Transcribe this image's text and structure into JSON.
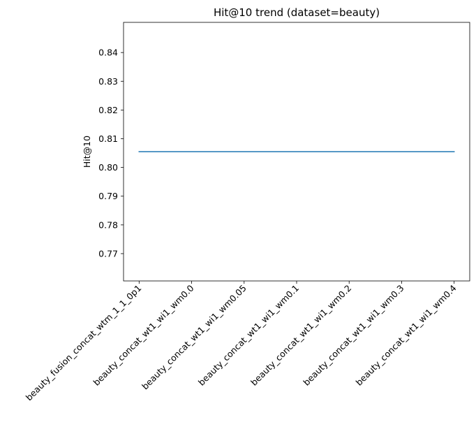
{
  "chart_data": {
    "type": "line",
    "title": "Hit@10 trend (dataset=beauty)",
    "xlabel": "",
    "ylabel": "Hit@10",
    "categories": [
      "beauty_fusion_concat_wtm_1_1_0p1",
      "beauty_concat_wt1_wi1_wm0.0",
      "beauty_concat_wt1_wi1_wm0.05",
      "beauty_concat_wt1_wi1_wm0.1",
      "beauty_concat_wt1_wi1_wm0.2",
      "beauty_concat_wt1_wi1_wm0.3",
      "beauty_concat_wt1_wi1_wm0.4"
    ],
    "series": [
      {
        "values": [
          0.8055,
          0.8055,
          0.8055,
          0.8055,
          0.8055,
          0.8055,
          0.8055
        ],
        "color": "#1f77b4"
      }
    ],
    "ylim": [
      0.7605,
      0.8505
    ],
    "yticks": [
      0.77,
      0.78,
      0.79,
      0.8,
      0.81,
      0.82,
      0.83,
      0.84
    ],
    "ytick_labels": [
      "0.77",
      "0.78",
      "0.79",
      "0.80",
      "0.81",
      "0.82",
      "0.83",
      "0.84"
    ],
    "grid": false,
    "legend": "none"
  }
}
